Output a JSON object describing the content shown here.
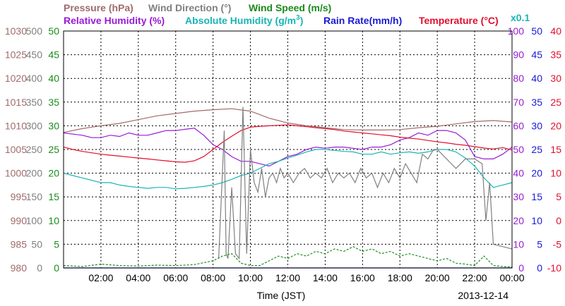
{
  "chart_data": {
    "type": "line",
    "date": "2013-12-14",
    "xlabel": "Time (JST)",
    "x_ticks": [
      "02:00",
      "04:00",
      "06:00",
      "08:00",
      "10:00",
      "12:00",
      "14:00",
      "16:00",
      "18:00",
      "20:00",
      "22:00",
      "00:00"
    ],
    "x_range_hours": [
      0,
      24
    ],
    "multiplier_note": "x0.1",
    "titles": {
      "pressure": "Pressure (hPa)",
      "wind_dir": "Wind Direction (°)",
      "wind_speed": "Wind Speed (m/s)",
      "rh": "Relative Humidity (%)",
      "ah_prefix": "Absolute Humidity (g/m",
      "ah_sup": "3",
      "ah_suffix": ")",
      "rain": "Rain Rate(mm/h)",
      "temp": "Temperature (°C)"
    },
    "axes": {
      "pressure": {
        "ticks": [
          "1030",
          "1025",
          "1020",
          "1015",
          "1010",
          "1005",
          "1000",
          "995",
          "990",
          "985",
          "980"
        ],
        "range": [
          980,
          1030
        ],
        "color": "#a06b6b"
      },
      "wind_dir": {
        "ticks": [
          "500",
          "450",
          "400",
          "350",
          "300",
          "250",
          "200",
          "150",
          "100",
          "50",
          "0"
        ],
        "range": [
          0,
          500
        ],
        "color": "#808080"
      },
      "wind_speed": {
        "ticks": [
          "50",
          "45",
          "40",
          "35",
          "30",
          "25",
          "20",
          "15",
          "10",
          "5",
          "0"
        ],
        "range": [
          0,
          50
        ],
        "color": "#1a8c1a"
      },
      "rh": {
        "ticks": [
          "100",
          "90",
          "80",
          "70",
          "60",
          "50",
          "40",
          "30",
          "20",
          "10",
          "0"
        ],
        "range": [
          0,
          100
        ],
        "color": "#9a1ad6"
      },
      "rain": {
        "ticks": [
          "50",
          "45",
          "40",
          "35",
          "30",
          "25",
          "20",
          "15",
          "10",
          "5",
          "0"
        ],
        "range": [
          0,
          50
        ],
        "color": "#1a1ad6"
      },
      "temp": {
        "ticks": [
          "40",
          "35",
          "30",
          "25",
          "20",
          "15",
          "10",
          "5",
          "0",
          "-5",
          "-10"
        ],
        "range": [
          -10,
          40
        ],
        "color": "#e0102c"
      }
    },
    "series": [
      {
        "name": "Pressure (hPa)",
        "color": "#a06b6b",
        "axis": "pressure",
        "x": [
          0,
          1,
          2,
          3,
          4,
          5,
          6,
          7,
          8,
          9,
          10,
          11,
          12,
          13,
          14,
          15,
          16,
          17,
          18,
          19,
          20,
          21,
          22,
          23,
          24
        ],
        "y": [
          1008.6,
          1009.4,
          1010.0,
          1010.5,
          1011.3,
          1012.1,
          1012.6,
          1013.1,
          1013.4,
          1013.6,
          1013.1,
          1011.6,
          1010.6,
          1010.0,
          1009.6,
          1009.2,
          1009.1,
          1009.1,
          1009.2,
          1009.6,
          1009.9,
          1010.4,
          1010.9,
          1011.1,
          1010.8
        ]
      },
      {
        "name": "Relative Humidity (%)",
        "color": "#9a1ad6",
        "axis": "rh",
        "x": [
          0,
          0.5,
          1,
          1.5,
          2,
          2.5,
          3,
          3.5,
          4,
          4.5,
          5,
          5.5,
          6,
          6.5,
          7,
          7.5,
          8,
          8.5,
          9,
          9.5,
          10,
          10.5,
          11,
          11.5,
          12,
          12.5,
          13,
          13.5,
          14,
          14.5,
          15,
          15.5,
          16,
          16.5,
          17,
          17.5,
          18,
          18.5,
          19,
          19.5,
          20,
          20.5,
          21,
          21.5,
          22,
          22.5,
          23,
          23.5,
          24
        ],
        "y": [
          57,
          56.5,
          56,
          55,
          55,
          56,
          55.5,
          57,
          56,
          56,
          57,
          58,
          58,
          58.5,
          59,
          56,
          52,
          50,
          47,
          45,
          45,
          44,
          43,
          45,
          47,
          48,
          50,
          51,
          50.5,
          51,
          51,
          50.5,
          50,
          51,
          51,
          52,
          54,
          55,
          57,
          56,
          58,
          58,
          57,
          54,
          47,
          46,
          46,
          48,
          51
        ]
      },
      {
        "name": "Absolute Humidity (g/m3)",
        "color": "#1ab4b4",
        "axis": "ah",
        "x": [
          0,
          0.5,
          1,
          1.5,
          2,
          2.5,
          3,
          3.5,
          4,
          4.5,
          5,
          5.5,
          6,
          6.5,
          7,
          7.5,
          8,
          8.5,
          9,
          9.5,
          10,
          10.5,
          11,
          11.5,
          12,
          12.5,
          13,
          13.5,
          14,
          14.5,
          15,
          15.5,
          16,
          16.5,
          17,
          17.5,
          18,
          18.5,
          19,
          19.5,
          20,
          20.5,
          21,
          21.5,
          22,
          22.5,
          23,
          23.5,
          24
        ],
        "y": [
          20.0,
          19.5,
          19.0,
          18.5,
          18.0,
          18.0,
          17.5,
          17.2,
          17.0,
          16.8,
          17.0,
          17.0,
          16.7,
          16.8,
          17.0,
          17.2,
          17.5,
          18.0,
          18.7,
          19.5,
          20.0,
          21.0,
          22.0,
          22.5,
          23.2,
          23.8,
          24.5,
          25.0,
          25.0,
          24.8,
          24.6,
          24.5,
          24.0,
          24.0,
          24.5,
          24.0,
          24.3,
          24.5,
          24.2,
          24.5,
          25.0,
          25.0,
          24.5,
          23.2,
          21.5,
          19.0,
          17.0,
          17.5,
          18.0
        ]
      },
      {
        "name": "Rain Rate(mm/h)",
        "color": "#1a1ad6",
        "axis": "rain",
        "x": [
          0,
          8.5,
          9,
          9.5,
          10,
          10.5,
          11,
          11.5,
          12,
          12.5,
          13,
          13.5,
          14,
          14.5,
          15,
          15.5,
          16,
          16.5,
          17,
          17.5,
          18,
          18.5,
          19,
          19.5,
          20,
          20.5,
          21,
          21.5,
          22,
          22.5,
          23,
          23.5,
          24
        ],
        "y": [
          0,
          0,
          0,
          0,
          0,
          0,
          0,
          0,
          0,
          0,
          0,
          0,
          0,
          0,
          0,
          0,
          0,
          0,
          0,
          0,
          0,
          0,
          0,
          0,
          0,
          0,
          0,
          0,
          0,
          0,
          0,
          0,
          0
        ]
      },
      {
        "name": "Temperature (°C)",
        "color": "#e0102c",
        "axis": "temp",
        "x": [
          0,
          0.5,
          1,
          1.5,
          2,
          2.5,
          3,
          3.5,
          4,
          4.5,
          5,
          5.5,
          6,
          6.5,
          7,
          7.5,
          8,
          8.5,
          9,
          9.5,
          10,
          10.5,
          11,
          11.5,
          12,
          12.5,
          13,
          13.5,
          14,
          14.5,
          15,
          15.5,
          16,
          16.5,
          17,
          17.5,
          18,
          18.5,
          19,
          19.5,
          20,
          20.5,
          21,
          21.5,
          22,
          22.5,
          23,
          23.5,
          24
        ],
        "y": [
          15.5,
          15.0,
          14.6,
          14.3,
          14.0,
          13.8,
          13.6,
          13.4,
          13.2,
          13.0,
          12.8,
          12.6,
          12.4,
          12.3,
          12.6,
          13.5,
          15.0,
          16.5,
          17.8,
          19.0,
          19.7,
          19.9,
          20.0,
          20.1,
          20.2,
          20.0,
          19.8,
          19.6,
          19.4,
          19.2,
          18.9,
          18.7,
          18.5,
          18.3,
          18.1,
          17.9,
          17.6,
          17.4,
          17.2,
          16.9,
          16.6,
          16.4,
          16.1,
          15.9,
          15.6,
          15.3,
          15.1,
          15.4,
          14.9
        ]
      },
      {
        "name": "Wind Direction (°)",
        "color": "#808080",
        "axis": "wind_dir",
        "x": [
          8.3,
          8.6,
          8.7,
          8.8,
          9.0,
          9.2,
          9.4,
          9.6,
          9.8,
          10.0,
          10.2,
          10.4,
          10.6,
          10.8,
          11.0,
          11.2,
          11.4,
          11.6,
          11.8,
          12.0,
          12.3,
          12.6,
          12.9,
          13.2,
          13.5,
          13.8,
          14.1,
          14.4,
          14.7,
          15.0,
          15.3,
          15.6,
          15.9,
          16.2,
          16.5,
          16.8,
          17.1,
          17.4,
          17.7,
          18.0,
          18.3,
          18.6,
          18.9,
          19.2,
          19.5,
          19.8,
          20.0,
          20.5,
          21.0,
          21.5,
          22.0,
          22.4,
          22.6,
          22.8,
          23.0,
          24.0
        ],
        "y": [
          20,
          290,
          30,
          20,
          170,
          30,
          20,
          340,
          30,
          250,
          180,
          160,
          210,
          150,
          190,
          200,
          180,
          210,
          190,
          200,
          180,
          200,
          210,
          190,
          200,
          190,
          210,
          180,
          200,
          190,
          200,
          180,
          210,
          190,
          200,
          170,
          200,
          180,
          210,
          190,
          220,
          200,
          180,
          240,
          230,
          250,
          250,
          230,
          210,
          230,
          230,
          220,
          100,
          180,
          50,
          40
        ]
      },
      {
        "name": "Wind Speed (m/s)",
        "color": "#1a8c1a",
        "axis": "wind_speed",
        "x": [
          0,
          1,
          2,
          3,
          4,
          5,
          6,
          7,
          8,
          8.5,
          9,
          9.5,
          10,
          10.5,
          11,
          11.5,
          12,
          12.5,
          13,
          13.5,
          14,
          14.5,
          15,
          15.5,
          16,
          16.5,
          17,
          17.5,
          18,
          18.5,
          19,
          19.5,
          20,
          20.5,
          21,
          21.5,
          22,
          22.5,
          23,
          23.5,
          24
        ],
        "y": [
          0.5,
          0.3,
          0.8,
          0.5,
          0.4,
          0.6,
          0.5,
          0.7,
          1.5,
          2.5,
          3.0,
          1.0,
          0.5,
          0.5,
          1.5,
          2.5,
          2.0,
          3.0,
          2.5,
          3.5,
          3.0,
          4.0,
          3.5,
          4.5,
          3.5,
          4.0,
          3.0,
          3.5,
          2.5,
          3.0,
          2.5,
          2.0,
          1.5,
          2.0,
          1.0,
          0.8,
          0.5,
          2.5,
          0.5,
          0.3,
          0.2
        ]
      }
    ]
  }
}
